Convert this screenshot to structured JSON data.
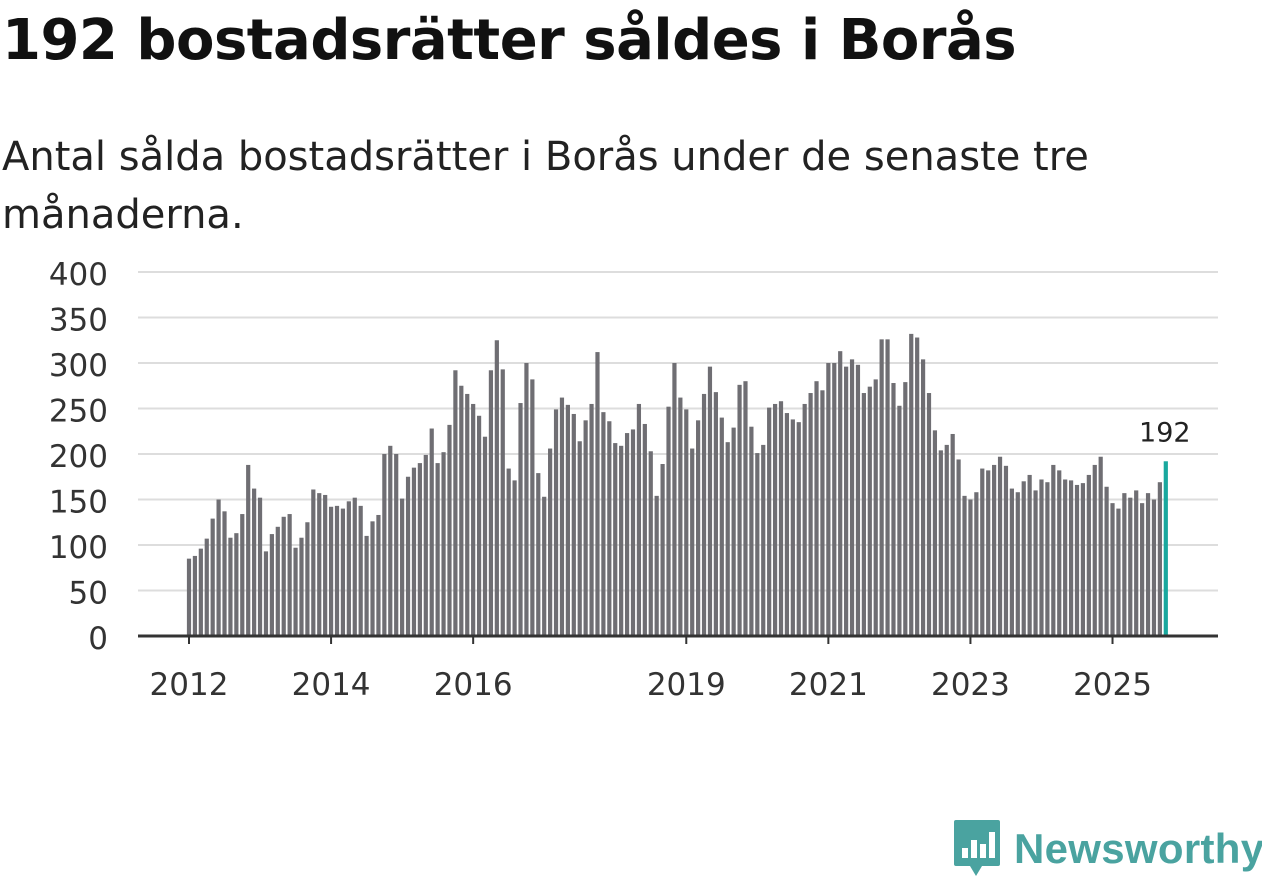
{
  "header": {
    "title": "192 bostadsrätter såldes i Borås",
    "subtitle": "Antal sålda bostadsrätter i Borås under de senaste tre månaderna."
  },
  "brand": {
    "name": "Newsworthy"
  },
  "colors": {
    "bar": "#6f6e73",
    "highlight": "#19a89e",
    "grid": "#dddddd",
    "axis": "#333333",
    "brand": "#4aa3a0"
  },
  "chart_data": {
    "type": "bar",
    "title": "192 bostadsrätter såldes i Borås",
    "subtitle": "Antal sålda bostadsrätter i Borås under de senaste tre månaderna.",
    "xlabel": "",
    "ylabel": "",
    "ylim": [
      0,
      400
    ],
    "yticks": [
      0,
      50,
      100,
      150,
      200,
      250,
      300,
      350,
      400
    ],
    "x_tick_labels": [
      "2012",
      "2014",
      "2016",
      "2019",
      "2021",
      "2023",
      "2025"
    ],
    "x_tick_months": [
      0,
      24,
      48,
      84,
      108,
      132,
      156
    ],
    "grid": true,
    "start": "2012-01",
    "values": [
      85,
      88,
      96,
      107,
      129,
      150,
      137,
      108,
      113,
      134,
      188,
      162,
      152,
      93,
      112,
      120,
      131,
      134,
      97,
      108,
      125,
      161,
      157,
      155,
      142,
      143,
      140,
      148,
      152,
      143,
      110,
      126,
      133,
      200,
      209,
      200,
      151,
      175,
      185,
      190,
      199,
      228,
      190,
      202,
      232,
      292,
      275,
      266,
      255,
      242,
      219,
      292,
      325,
      293,
      184,
      171,
      256,
      300,
      282,
      179,
      153,
      206,
      249,
      262,
      254,
      244,
      214,
      237,
      255,
      312,
      246,
      236,
      212,
      209,
      223,
      227,
      255,
      233,
      203,
      154,
      189,
      252,
      300,
      262,
      249,
      206,
      237,
      266,
      296,
      268,
      240,
      213,
      229,
      276,
      280,
      230,
      201,
      210,
      251,
      255,
      258,
      245,
      238,
      235,
      255,
      267,
      280,
      270,
      300,
      300,
      313,
      296,
      304,
      298,
      267,
      274,
      282,
      326,
      326,
      278,
      253,
      279,
      332,
      328,
      304,
      267,
      226,
      204,
      210,
      222,
      194,
      154,
      150,
      158,
      184,
      182,
      188,
      197,
      187,
      162,
      158,
      170,
      177,
      160,
      172,
      169,
      188,
      182,
      172,
      171,
      166,
      168,
      177,
      188,
      197,
      164,
      146,
      140,
      157,
      152,
      160,
      146,
      157,
      150,
      169,
      192
    ],
    "highlight_last": true,
    "annotation": {
      "value": "192",
      "point": "last"
    }
  }
}
